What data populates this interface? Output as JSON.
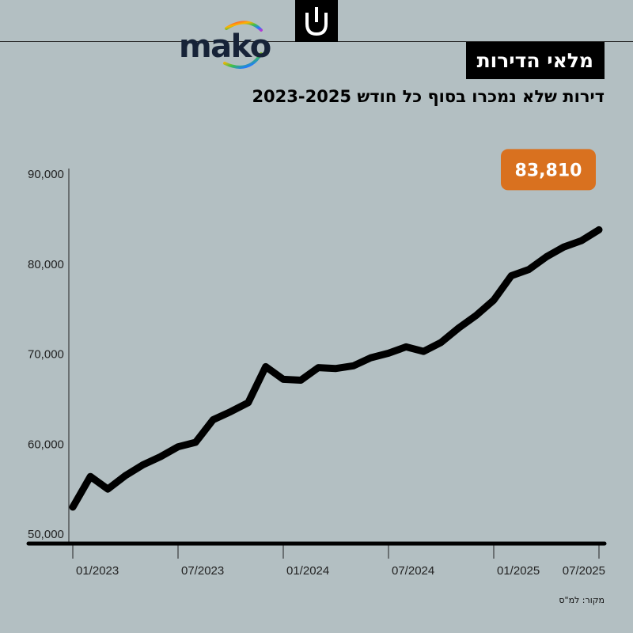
{
  "header": {
    "logo_text": "mako",
    "title": "מלאי הדירות",
    "subtitle": "דירות שלא נמכרו בסוף כל חודש 2023-2025"
  },
  "footer": {
    "source": "מקור: למ\"ס"
  },
  "colors": {
    "background": "#b3bfc2",
    "line": "#000000",
    "callout": "#d9711f",
    "title_box": "#000000"
  },
  "chart_data": {
    "type": "line",
    "title": "",
    "xlabel": "",
    "ylabel": "",
    "ylim": [
      50000,
      90000
    ],
    "xlim": [
      "2023-01",
      "2025-07"
    ],
    "y_ticks": [
      50000,
      60000,
      70000,
      80000,
      90000
    ],
    "y_tick_labels": [
      "50,000",
      "60,000",
      "70,000",
      "80,000",
      "90,000"
    ],
    "x_ticks": [
      "2023-01",
      "2023-07",
      "2024-01",
      "2024-07",
      "2025-01",
      "2025-07"
    ],
    "x_tick_labels": [
      "01/2023",
      "07/2023",
      "01/2024",
      "07/2024",
      "01/2025",
      "07/2025"
    ],
    "grid": false,
    "legend": "none",
    "x": [
      "2023-01",
      "2023-02",
      "2023-03",
      "2023-04",
      "2023-05",
      "2023-06",
      "2023-07",
      "2023-08",
      "2023-09",
      "2023-10",
      "2023-11",
      "2023-12",
      "2024-01",
      "2024-02",
      "2024-03",
      "2024-04",
      "2024-05",
      "2024-06",
      "2024-07",
      "2024-08",
      "2024-09",
      "2024-10",
      "2024-11",
      "2024-12",
      "2025-01",
      "2025-02",
      "2025-03",
      "2025-04",
      "2025-05",
      "2025-06",
      "2025-07"
    ],
    "series": [
      {
        "values": [
          53000,
          56400,
          55000,
          56500,
          57700,
          58600,
          59700,
          60200,
          62700,
          63600,
          64600,
          68600,
          67200,
          67100,
          68500,
          68400,
          68700,
          69600,
          70100,
          70800,
          70300,
          71300,
          72900,
          74300,
          76000,
          78700,
          79400,
          80800,
          81900,
          82600,
          83810
        ]
      }
    ],
    "annotation": {
      "label": "83,810",
      "x": "2025-07",
      "value": 83810
    }
  }
}
